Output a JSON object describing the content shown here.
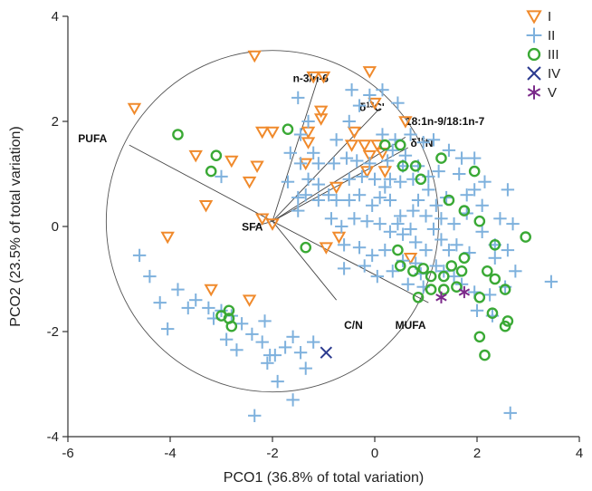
{
  "chart_data": {
    "type": "scatter",
    "title": "",
    "xlabel": "PCO1 (36.8% of total variation)",
    "ylabel": "PCO2 (23.5% of total variation)",
    "xlim": [
      -6,
      4
    ],
    "ylim": [
      -4,
      4
    ],
    "x_ticks": [
      "-6",
      "-4",
      "-2",
      "0",
      "2",
      "4"
    ],
    "y_ticks": [
      "4",
      "2",
      "0",
      "-2",
      "-4"
    ],
    "grid": false,
    "legend_position": "top-right",
    "correlation_circle": {
      "center": [
        -2,
        0.1
      ],
      "radius": 3.25
    },
    "vectors": [
      {
        "label": "n-3/n-6",
        "end": [
          -1.1,
          2.85
        ],
        "label_at": [
          -1.6,
          2.75
        ]
      },
      {
        "label": "δ13C'",
        "sup": "13",
        "end": [
          0.1,
          2.25
        ],
        "label_at": [
          -0.3,
          2.2
        ]
      },
      {
        "label": "18:1n-9/18:1n-7",
        "end": [
          0.6,
          1.7
        ],
        "label_at": [
          0.6,
          1.93
        ]
      },
      {
        "label": "δ15N",
        "sup": "15",
        "end": [
          0.65,
          1.5
        ],
        "label_at": [
          0.7,
          1.52
        ]
      },
      {
        "label": "PUFA",
        "end": [
          -4.8,
          1.55
        ],
        "label_at": [
          -5.8,
          1.6
        ]
      },
      {
        "label": "SFA",
        "end": [
          -2.35,
          0.0
        ],
        "label_at": [
          -2.6,
          -0.08
        ]
      },
      {
        "label": "MUFA",
        "end": [
          1.05,
          -1.45
        ],
        "label_at": [
          0.4,
          -1.95
        ]
      },
      {
        "label": "C/N",
        "end": [
          -0.75,
          -1.4
        ],
        "label_at": [
          -0.6,
          -1.95
        ]
      }
    ],
    "series": [
      {
        "name": "I",
        "marker": "triangle-down",
        "color": "#f08a2c",
        "points": [
          [
            -4.7,
            2.25
          ],
          [
            -2.35,
            3.25
          ],
          [
            -1.2,
            2.85
          ],
          [
            -1.0,
            2.85
          ],
          [
            -0.1,
            2.95
          ],
          [
            -1.05,
            2.2
          ],
          [
            -1.05,
            2.05
          ],
          [
            -1.3,
            1.8
          ],
          [
            -1.3,
            1.6
          ],
          [
            0.0,
            2.35
          ],
          [
            0.6,
            2.0
          ],
          [
            -2.0,
            1.8
          ],
          [
            -2.2,
            1.8
          ],
          [
            -0.4,
            1.8
          ],
          [
            -0.2,
            1.55
          ],
          [
            -0.45,
            1.55
          ],
          [
            -1.35,
            1.2
          ],
          [
            -2.3,
            1.15
          ],
          [
            -3.5,
            1.35
          ],
          [
            -2.8,
            1.25
          ],
          [
            -2.45,
            0.85
          ],
          [
            -0.75,
            0.75
          ],
          [
            -3.3,
            0.4
          ],
          [
            -4.05,
            -0.2
          ],
          [
            -2.2,
            0.15
          ],
          [
            -2.0,
            0.05
          ],
          [
            -0.7,
            -0.2
          ],
          [
            -0.95,
            -0.4
          ],
          [
            0.7,
            -0.6
          ],
          [
            -3.2,
            -1.2
          ],
          [
            -2.45,
            -1.4
          ],
          [
            0.05,
            1.55
          ],
          [
            0.15,
            1.4
          ],
          [
            -0.1,
            1.35
          ],
          [
            0.2,
            1.05
          ],
          [
            -0.15,
            1.05
          ]
        ]
      },
      {
        "name": "II",
        "marker": "plus",
        "color": "#7eb1dd",
        "points": [
          [
            -4.6,
            -0.55
          ],
          [
            -4.4,
            -0.95
          ],
          [
            -4.2,
            -1.45
          ],
          [
            -3.85,
            -1.2
          ],
          [
            -3.65,
            -1.55
          ],
          [
            -4.05,
            -1.95
          ],
          [
            -3.5,
            -1.4
          ],
          [
            -3.25,
            -1.55
          ],
          [
            -3.15,
            -1.75
          ],
          [
            -3.0,
            -1.6
          ],
          [
            -2.8,
            -1.7
          ],
          [
            -2.9,
            -2.15
          ],
          [
            -2.7,
            -2.35
          ],
          [
            -2.6,
            -1.85
          ],
          [
            -2.4,
            -2.05
          ],
          [
            -2.15,
            -1.8
          ],
          [
            -2.2,
            -2.2
          ],
          [
            -2.05,
            -2.45
          ],
          [
            -1.75,
            -2.3
          ],
          [
            -1.6,
            -2.1
          ],
          [
            -1.45,
            -2.4
          ],
          [
            -1.2,
            -2.2
          ],
          [
            -1.35,
            -2.7
          ],
          [
            -1.95,
            -2.45
          ],
          [
            -2.1,
            -2.6
          ],
          [
            -1.9,
            -2.95
          ],
          [
            -2.35,
            -3.6
          ],
          [
            -1.6,
            -3.3
          ],
          [
            -3.0,
            0.95
          ],
          [
            -1.5,
            2.45
          ],
          [
            -1.3,
            2.0
          ],
          [
            -1.45,
            1.75
          ],
          [
            -1.65,
            1.4
          ],
          [
            -1.45,
            1.2
          ],
          [
            -1.2,
            1.4
          ],
          [
            -1.1,
            1.2
          ],
          [
            -1.3,
            0.9
          ],
          [
            -1.1,
            0.8
          ],
          [
            -1.35,
            0.6
          ],
          [
            -1.5,
            0.3
          ],
          [
            -1.1,
            0.5
          ],
          [
            -0.9,
            0.6
          ],
          [
            -0.75,
            0.5
          ],
          [
            -0.5,
            0.5
          ],
          [
            -0.3,
            0.6
          ],
          [
            0.1,
            0.55
          ],
          [
            0.3,
            0.5
          ],
          [
            -0.5,
            0.9
          ],
          [
            -0.25,
            0.95
          ],
          [
            0.0,
            0.9
          ],
          [
            0.3,
            0.9
          ],
          [
            0.5,
            0.85
          ],
          [
            -0.8,
            1.2
          ],
          [
            -0.55,
            1.3
          ],
          [
            -0.35,
            1.25
          ],
          [
            -0.1,
            1.2
          ],
          [
            0.25,
            1.25
          ],
          [
            0.55,
            1.15
          ],
          [
            0.85,
            1.15
          ],
          [
            -0.75,
            1.65
          ],
          [
            -0.5,
            2.0
          ],
          [
            -0.3,
            2.3
          ],
          [
            -0.1,
            2.5
          ],
          [
            0.15,
            2.6
          ],
          [
            0.45,
            2.35
          ],
          [
            -0.45,
            2.6
          ],
          [
            0.15,
            1.75
          ],
          [
            0.4,
            1.65
          ],
          [
            0.7,
            1.75
          ],
          [
            0.95,
            1.6
          ],
          [
            1.15,
            1.65
          ],
          [
            1.45,
            1.45
          ],
          [
            1.7,
            1.3
          ],
          [
            1.95,
            1.3
          ],
          [
            0.5,
            0.2
          ],
          [
            0.75,
            0.3
          ],
          [
            1.0,
            0.2
          ],
          [
            1.2,
            0.4
          ],
          [
            1.3,
            0.15
          ],
          [
            0.85,
            0.5
          ],
          [
            1.05,
            0.7
          ],
          [
            1.4,
            0.55
          ],
          [
            0.55,
            -0.15
          ],
          [
            0.8,
            -0.3
          ],
          [
            1.0,
            -0.45
          ],
          [
            1.3,
            -0.25
          ],
          [
            1.45,
            -0.45
          ],
          [
            1.2,
            -0.75
          ],
          [
            0.9,
            -0.9
          ],
          [
            0.65,
            -1.1
          ],
          [
            0.95,
            -1.15
          ],
          [
            1.35,
            -0.85
          ],
          [
            1.55,
            -0.95
          ],
          [
            -0.85,
            0.15
          ],
          [
            -0.65,
            0.0
          ],
          [
            -0.4,
            0.15
          ],
          [
            -0.15,
            0.1
          ],
          [
            0.1,
            0.05
          ],
          [
            0.3,
            -0.1
          ],
          [
            -0.6,
            -0.35
          ],
          [
            -0.3,
            -0.4
          ],
          [
            -0.05,
            -0.55
          ],
          [
            0.2,
            -0.45
          ],
          [
            -0.2,
            -0.75
          ],
          [
            0.05,
            -0.95
          ],
          [
            0.35,
            -0.85
          ],
          [
            1.8,
            0.6
          ],
          [
            2.1,
            0.4
          ],
          [
            2.35,
            -0.35
          ],
          [
            2.6,
            0.7
          ],
          [
            2.45,
            0.15
          ],
          [
            2.1,
            -0.1
          ],
          [
            2.35,
            -0.6
          ],
          [
            2.6,
            -0.45
          ],
          [
            2.75,
            -0.85
          ],
          [
            2.55,
            -1.15
          ],
          [
            2.25,
            -1.3
          ],
          [
            1.95,
            -1.25
          ],
          [
            1.7,
            -1.1
          ],
          [
            2.0,
            -1.6
          ],
          [
            2.3,
            -1.7
          ],
          [
            2.65,
            -3.55
          ],
          [
            3.45,
            -1.05
          ],
          [
            2.7,
            0.05
          ],
          [
            1.65,
            1.0
          ],
          [
            1.25,
            1.05
          ],
          [
            0.45,
            0.05
          ],
          [
            0.7,
            -0.05
          ],
          [
            -0.05,
            0.4
          ],
          [
            0.2,
            0.75
          ],
          [
            0.75,
            0.9
          ],
          [
            1.05,
            0.95
          ],
          [
            -1.5,
            0.55
          ],
          [
            -1.7,
            0.85
          ],
          [
            -0.6,
            -0.8
          ],
          [
            0.55,
            -0.65
          ],
          [
            0.8,
            -0.7
          ],
          [
            1.15,
            -0.05
          ],
          [
            1.55,
            0.05
          ],
          [
            1.8,
            0.25
          ],
          [
            1.6,
            -0.35
          ],
          [
            1.85,
            -0.5
          ],
          [
            2.15,
            0.85
          ],
          [
            1.95,
            0.7
          ],
          [
            0.35,
            1.45
          ],
          [
            0.6,
            1.35
          ]
        ]
      },
      {
        "name": "III",
        "marker": "circle",
        "color": "#3aa935",
        "points": [
          [
            -3.85,
            1.75
          ],
          [
            -3.1,
            1.35
          ],
          [
            -3.2,
            1.05
          ],
          [
            -1.7,
            1.85
          ],
          [
            0.2,
            1.55
          ],
          [
            0.5,
            1.55
          ],
          [
            0.55,
            1.15
          ],
          [
            0.8,
            1.15
          ],
          [
            1.3,
            1.3
          ],
          [
            1.95,
            1.05
          ],
          [
            0.9,
            0.9
          ],
          [
            1.45,
            0.5
          ],
          [
            1.75,
            0.3
          ],
          [
            2.05,
            0.1
          ],
          [
            -1.35,
            -0.4
          ],
          [
            0.45,
            -0.45
          ],
          [
            0.5,
            -0.75
          ],
          [
            0.75,
            -0.85
          ],
          [
            0.95,
            -0.8
          ],
          [
            1.1,
            -0.95
          ],
          [
            1.35,
            -0.95
          ],
          [
            1.5,
            -0.75
          ],
          [
            1.75,
            -0.6
          ],
          [
            1.7,
            -0.85
          ],
          [
            1.1,
            -1.2
          ],
          [
            1.35,
            -1.2
          ],
          [
            1.6,
            -1.15
          ],
          [
            0.85,
            -1.35
          ],
          [
            -2.85,
            -1.6
          ],
          [
            -2.85,
            -1.75
          ],
          [
            -3.0,
            -1.7
          ],
          [
            -2.8,
            -1.9
          ],
          [
            2.2,
            -0.85
          ],
          [
            2.35,
            -1.0
          ],
          [
            2.05,
            -1.35
          ],
          [
            2.55,
            -1.2
          ],
          [
            2.3,
            -1.65
          ],
          [
            2.6,
            -1.8
          ],
          [
            2.55,
            -1.9
          ],
          [
            2.05,
            -2.1
          ],
          [
            2.15,
            -2.45
          ],
          [
            2.95,
            -0.2
          ],
          [
            2.35,
            -0.35
          ]
        ]
      },
      {
        "name": "IV",
        "marker": "x",
        "color": "#2b3a8f",
        "points": [
          [
            -0.95,
            -2.4
          ]
        ]
      },
      {
        "name": "V",
        "marker": "asterisk",
        "color": "#7b2a8a",
        "points": [
          [
            1.3,
            -1.35
          ],
          [
            1.75,
            -1.25
          ]
        ]
      }
    ]
  }
}
